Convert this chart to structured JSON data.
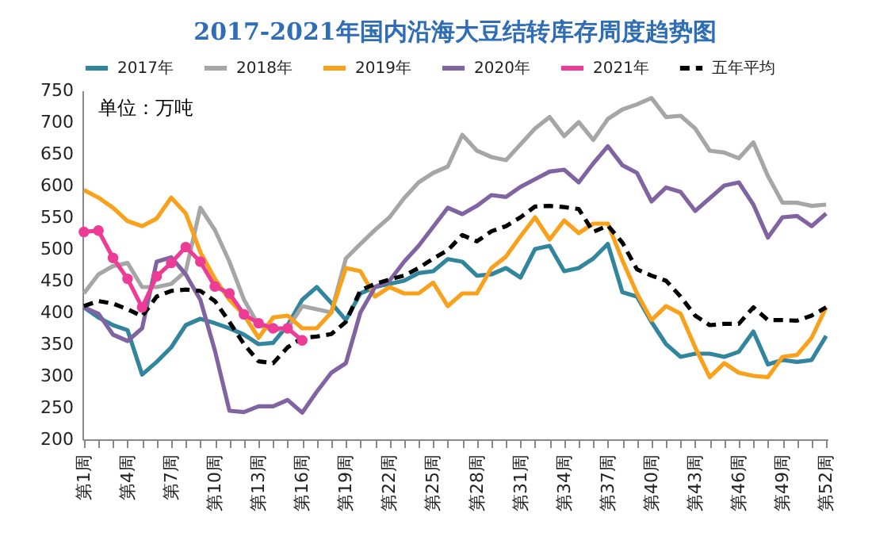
{
  "chart_data": {
    "type": "line",
    "title": "2017-2021年国内沿海大豆结转库存周度趋势图",
    "annotations": [
      "单位：万吨"
    ],
    "categories": [
      "第1周",
      null,
      null,
      "第4周",
      null,
      null,
      "第7周",
      null,
      null,
      "第10周",
      null,
      null,
      "第13周",
      null,
      null,
      "第16周",
      null,
      null,
      "第19周",
      null,
      null,
      "第22周",
      null,
      null,
      "第25周",
      null,
      null,
      "第28周",
      null,
      null,
      "第31周",
      null,
      null,
      "第34周",
      null,
      null,
      "第37周",
      null,
      null,
      "第40周",
      null,
      null,
      "第43周",
      null,
      null,
      "第46周",
      null,
      null,
      "第49周",
      null,
      null,
      "第52周"
    ],
    "ylim": [
      200,
      750
    ],
    "yticks": [
      200,
      250,
      300,
      350,
      400,
      450,
      500,
      550,
      600,
      650,
      700,
      750
    ],
    "legend": "top",
    "grid": false,
    "series": [
      {
        "name": "2017年",
        "color": "#31859c",
        "line_style": "solid",
        "values": [
          408,
          392,
          380,
          372,
          302,
          322,
          345,
          380,
          390,
          383,
          375,
          365,
          350,
          352,
          380,
          420,
          440,
          415,
          388,
          430,
          440,
          445,
          450,
          462,
          465,
          484,
          480,
          458,
          460,
          470,
          455,
          500,
          505,
          465,
          470,
          485,
          508,
          432,
          425,
          385,
          350,
          330,
          335,
          335,
          330,
          338,
          370,
          318,
          325,
          322,
          325,
          363
        ]
      },
      {
        "name": "2018年",
        "color": "#a6a6a6",
        "line_style": "solid",
        "values": [
          430,
          460,
          473,
          478,
          440,
          440,
          445,
          465,
          565,
          530,
          480,
          420,
          380,
          372,
          375,
          410,
          405,
          400,
          485,
          508,
          530,
          550,
          580,
          605,
          620,
          630,
          680,
          655,
          645,
          640,
          665,
          690,
          708,
          678,
          700,
          672,
          705,
          720,
          728,
          738,
          708,
          710,
          690,
          655,
          652,
          643,
          668,
          615,
          573,
          573,
          568,
          570
        ]
      },
      {
        "name": "2019年",
        "color": "#f9a11b",
        "line_style": "solid",
        "values": [
          593,
          581,
          565,
          544,
          536,
          548,
          581,
          556,
          495,
          453,
          420,
          396,
          360,
          392,
          395,
          375,
          375,
          400,
          470,
          465,
          425,
          440,
          430,
          430,
          447,
          410,
          430,
          430,
          470,
          488,
          520,
          550,
          515,
          545,
          525,
          540,
          540,
          482,
          430,
          388,
          410,
          398,
          345,
          298,
          320,
          305,
          300,
          298,
          330,
          333,
          360,
          408
        ]
      },
      {
        "name": "2020年",
        "color": "#8064a2",
        "line_style": "solid",
        "values": [
          408,
          398,
          365,
          355,
          375,
          480,
          487,
          460,
          420,
          340,
          245,
          243,
          252,
          252,
          262,
          242,
          275,
          305,
          320,
          400,
          440,
          450,
          480,
          505,
          535,
          565,
          555,
          568,
          585,
          582,
          598,
          610,
          622,
          625,
          605,
          635,
          662,
          632,
          620,
          575,
          597,
          590,
          560,
          580,
          600,
          605,
          570,
          518,
          550,
          552,
          536,
          556
        ]
      },
      {
        "name": "2021年",
        "color": "#ec3c96",
        "line_style": "solid",
        "marker": "circle",
        "values": [
          527,
          529,
          486,
          453,
          408,
          457,
          478,
          503,
          480,
          441,
          430,
          397,
          383,
          375,
          375,
          356,
          null,
          null,
          null,
          null,
          null,
          null,
          null,
          null,
          null,
          null,
          null,
          null,
          null,
          null,
          null,
          null,
          null,
          null,
          null,
          null,
          null,
          null,
          null,
          null,
          null,
          null,
          null,
          null,
          null,
          null,
          null,
          null,
          null,
          null,
          null,
          null
        ]
      },
      {
        "name": "五年平均",
        "color": "#000000",
        "line_style": "dashed",
        "values": [
          410,
          418,
          414,
          405,
          394,
          425,
          434,
          436,
          434,
          418,
          385,
          350,
          323,
          320,
          345,
          360,
          362,
          366,
          385,
          435,
          445,
          452,
          458,
          470,
          485,
          498,
          522,
          512,
          528,
          536,
          550,
          567,
          568,
          566,
          563,
          527,
          537,
          510,
          468,
          458,
          450,
          425,
          395,
          380,
          382,
          382,
          408,
          388,
          388,
          387,
          395,
          408
        ]
      }
    ]
  }
}
